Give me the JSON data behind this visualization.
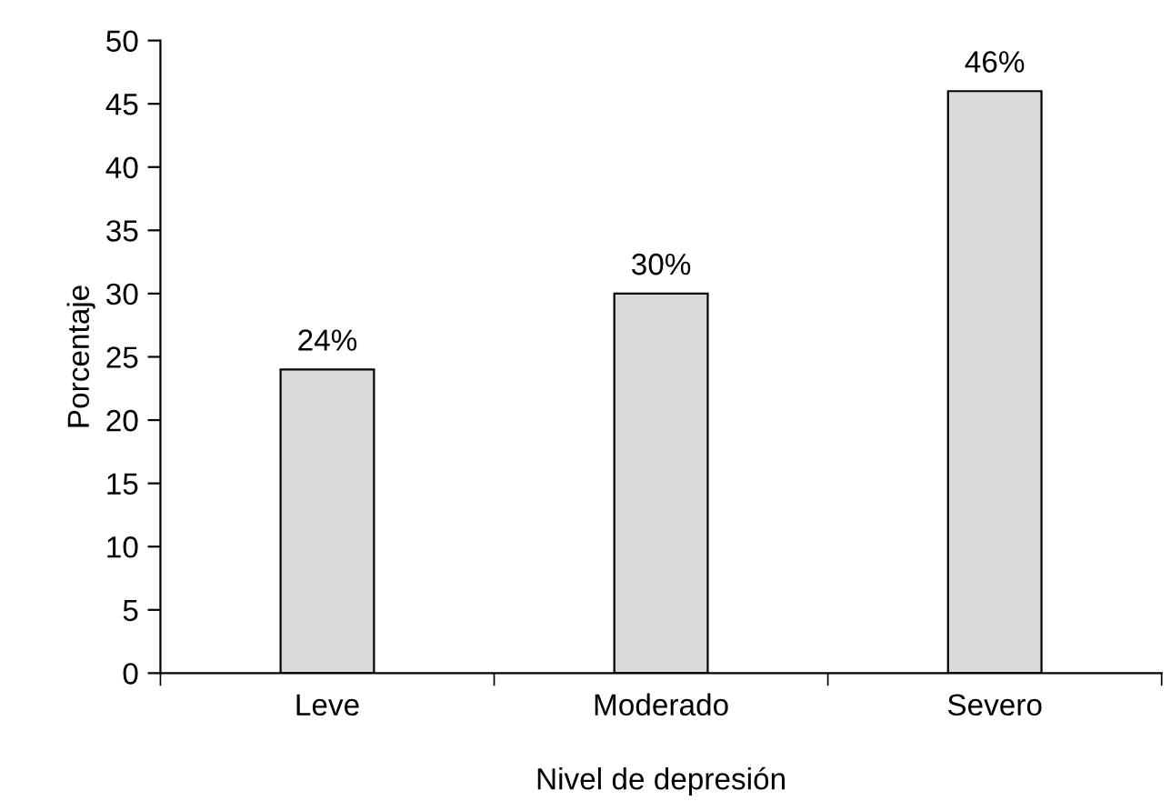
{
  "chart_data": {
    "type": "bar",
    "xlabel": "Nivel de depresión",
    "ylabel": "Porcentaje",
    "categories": [
      "Leve",
      "Moderado",
      "Severo"
    ],
    "values": [
      24,
      30,
      46
    ],
    "value_labels": [
      "24%",
      "30%",
      "46%"
    ],
    "color": "#d9d9d9",
    "ylim": [
      0,
      50
    ],
    "yticks": [
      0,
      5,
      10,
      15,
      20,
      25,
      30,
      35,
      40,
      45,
      50
    ],
    "grid": false,
    "legend": false
  }
}
